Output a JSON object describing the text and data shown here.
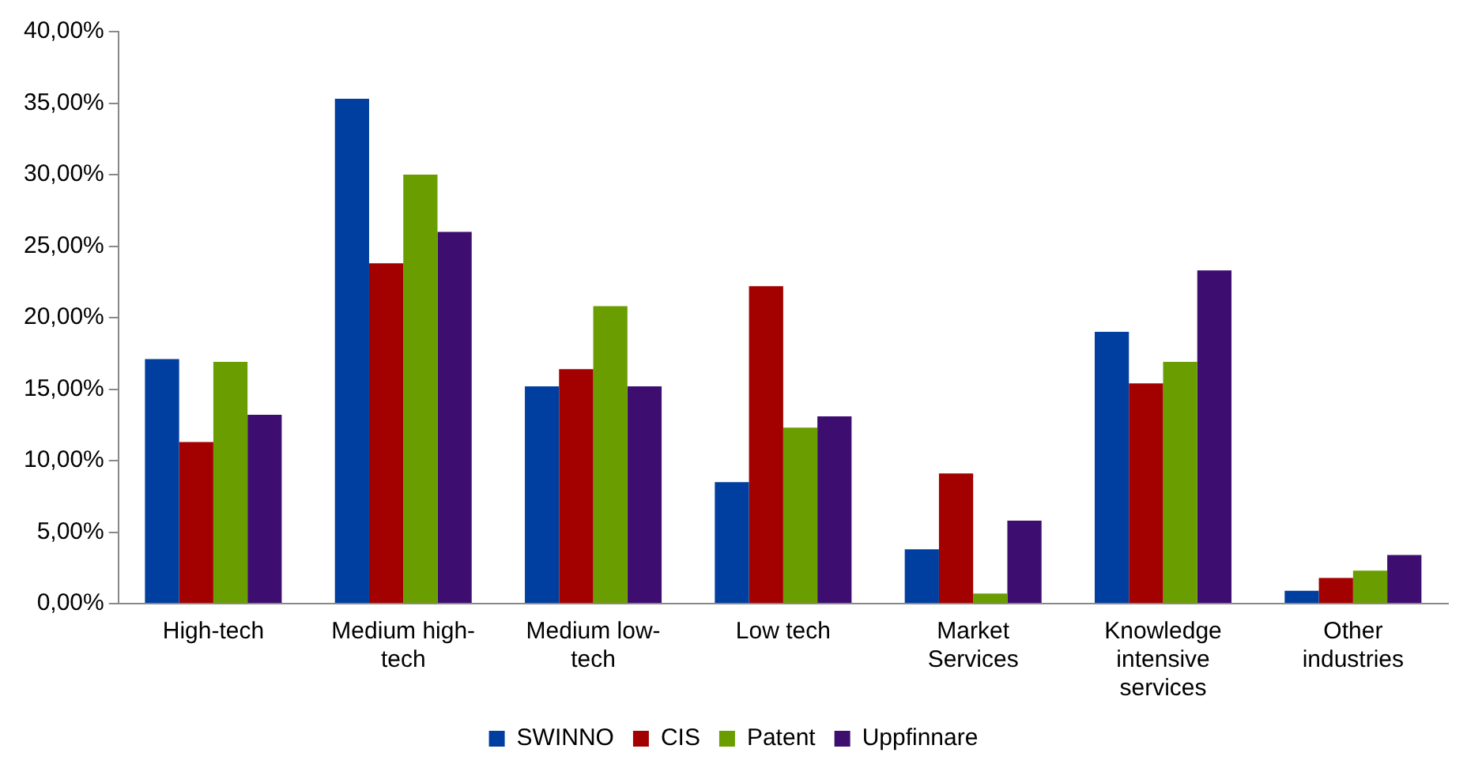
{
  "chart_data": {
    "type": "bar",
    "categories": [
      "High-tech",
      "Medium high-tech",
      "Medium low-tech",
      "Low tech",
      "Market Services",
      "Knowledge intensive services",
      "Other industries"
    ],
    "series": [
      {
        "name": "SWINNO",
        "color": "#003f9f",
        "values": [
          17.1,
          35.3,
          15.2,
          8.5,
          3.8,
          19.0,
          0.9
        ]
      },
      {
        "name": "CIS",
        "color": "#a30000",
        "values": [
          11.3,
          23.8,
          16.4,
          22.2,
          9.1,
          15.4,
          1.8
        ]
      },
      {
        "name": "Patent",
        "color": "#6a9e00",
        "values": [
          16.9,
          30.0,
          20.8,
          12.3,
          0.7,
          16.9,
          2.3
        ]
      },
      {
        "name": "Uppfinnare",
        "color": "#3d0d70",
        "values": [
          13.2,
          26.0,
          15.2,
          13.1,
          5.8,
          23.3,
          3.4
        ]
      }
    ],
    "ylim": [
      0,
      40
    ],
    "yticks": [
      {
        "value": 0,
        "label": "0,00%"
      },
      {
        "value": 5,
        "label": "5,00%"
      },
      {
        "value": 10,
        "label": "10,00%"
      },
      {
        "value": 15,
        "label": "15,00%"
      },
      {
        "value": 20,
        "label": "20,00%"
      },
      {
        "value": 25,
        "label": "25,00%"
      },
      {
        "value": 30,
        "label": "30,00%"
      },
      {
        "value": 35,
        "label": "35,00%"
      },
      {
        "value": 40,
        "label": "40,00%"
      }
    ],
    "grid": false,
    "legend": "bottom"
  }
}
